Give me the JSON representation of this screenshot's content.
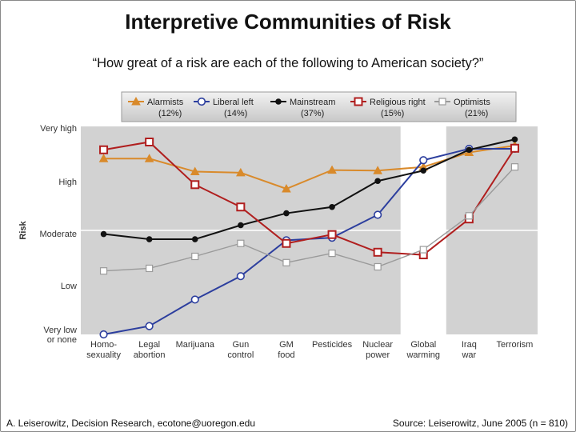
{
  "slide": {
    "title": "Interpretive Communities of Risk",
    "subtitle": "“How great of a risk are each of the following to American society?”",
    "footer_left": "A. Leiserowitz, Decision Research, ecotone@uoregon.edu",
    "footer_right": "Source: Leiserowitz, June  2005 (n = 810)"
  },
  "chart_data": {
    "type": "line",
    "title": "",
    "xlabel": "",
    "ylabel": "Risk",
    "categories": [
      [
        "Homo-",
        "sexuality"
      ],
      [
        "Legal",
        "abortion"
      ],
      [
        "Marijuana"
      ],
      [
        "Gun",
        "control"
      ],
      [
        "GM",
        "food"
      ],
      [
        "Pesticides"
      ],
      [
        "Nuclear",
        "power"
      ],
      [
        "Global",
        "warming"
      ],
      [
        "Iraq",
        "war"
      ],
      [
        "Terrorism"
      ]
    ],
    "yticks": [
      {
        "value": 1,
        "label": [
          "Very low",
          "or none"
        ]
      },
      {
        "value": 2,
        "label": [
          "Low"
        ]
      },
      {
        "value": 3,
        "label": [
          "Moderate"
        ]
      },
      {
        "value": 4,
        "label": [
          "High"
        ]
      },
      {
        "value": 5,
        "label": [
          "Very high"
        ]
      }
    ],
    "ylim": [
      1,
      5
    ],
    "highlight_category": 7,
    "series": [
      {
        "name": "Alarmists",
        "share": "(12%)",
        "color": "#d98a2b",
        "marker": "triangle",
        "values": [
          4.38,
          4.38,
          4.13,
          4.11,
          3.8,
          4.16,
          4.15,
          4.22,
          4.5,
          4.63
        ]
      },
      {
        "name": "Liberal left",
        "share": "(14%)",
        "color": "#2c3e9e",
        "marker": "circle",
        "values": [
          1.0,
          1.16,
          1.67,
          2.12,
          2.81,
          2.86,
          3.3,
          4.35,
          4.57,
          4.57
        ]
      },
      {
        "name": "Mainstream",
        "share": "(37%)",
        "color": "#111111",
        "marker": "dot",
        "values": [
          2.93,
          2.83,
          2.83,
          3.1,
          3.33,
          3.45,
          3.95,
          4.15,
          4.55,
          4.75
        ]
      },
      {
        "name": "Religious right",
        "share": "(15%)",
        "color": "#b01e1e",
        "marker": "square",
        "values": [
          4.55,
          4.7,
          3.88,
          3.45,
          2.75,
          2.92,
          2.58,
          2.53,
          3.22,
          4.58
        ]
      },
      {
        "name": "Optimists",
        "share": "(21%)",
        "color": "#9a9a9a",
        "marker": "open-square",
        "values": [
          2.22,
          2.27,
          2.5,
          2.75,
          2.38,
          2.56,
          2.3,
          2.63,
          3.28,
          4.22
        ]
      }
    ],
    "legend_position": "top"
  }
}
